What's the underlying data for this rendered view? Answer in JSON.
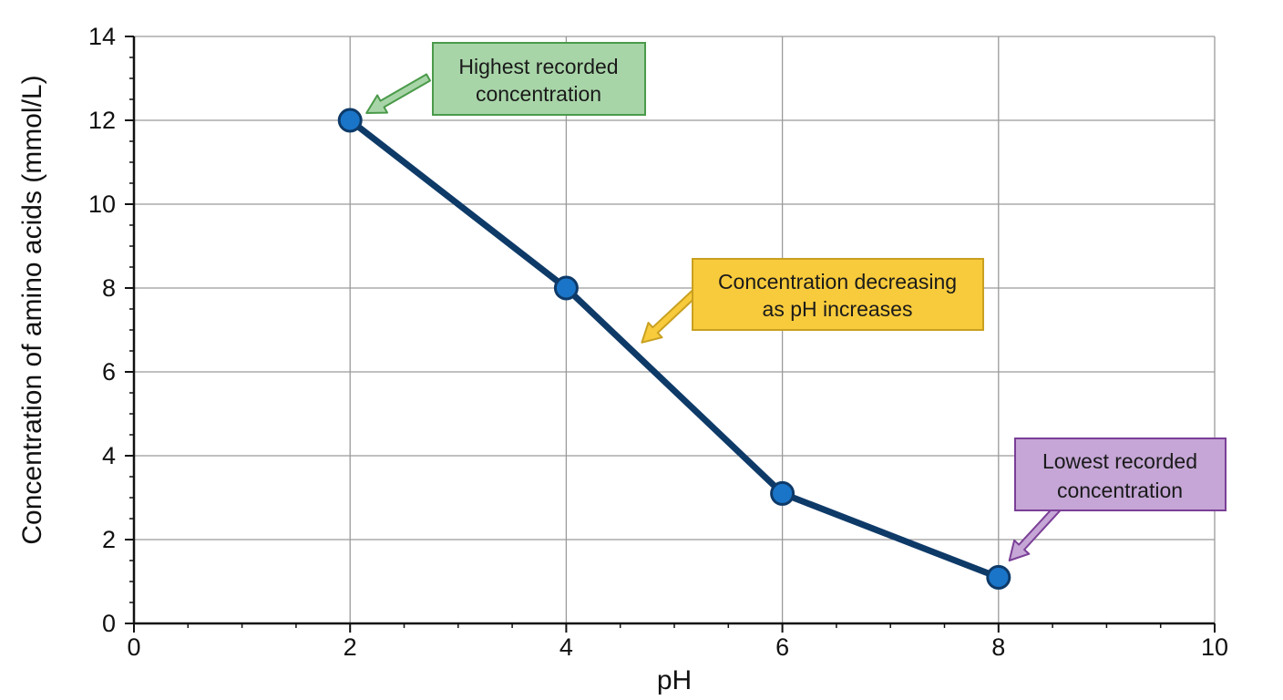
{
  "chart_data": {
    "type": "line",
    "title": "",
    "xlabel": "pH",
    "ylabel": "Concentration of amino acids (mmol/L)",
    "xlim": [
      0,
      10
    ],
    "ylim": [
      0,
      14
    ],
    "x_ticks": [
      0,
      2,
      4,
      6,
      8,
      10
    ],
    "y_ticks": [
      0,
      2,
      4,
      6,
      8,
      10,
      12,
      14
    ],
    "x_minor_step": 0.5,
    "y_minor_step": 0.5,
    "grid": true,
    "series": [
      {
        "x": [
          2,
          4,
          6,
          8
        ],
        "y": [
          12,
          8,
          3.1,
          1.1
        ]
      }
    ],
    "annotations": [
      {
        "lines": [
          "Highest recorded",
          "concentration"
        ],
        "target": [
          2,
          12
        ],
        "style": "green"
      },
      {
        "lines": [
          "Concentration decreasing",
          "as pH increases"
        ],
        "target": [
          4.7,
          6.7
        ],
        "style": "yellow"
      },
      {
        "lines": [
          "Lowest recorded",
          "concentration"
        ],
        "target": [
          8.1,
          1.5
        ],
        "style": "purple"
      }
    ]
  },
  "colors": {
    "line": "#0e3a68",
    "marker_fill": "#1a75c8",
    "marker_stroke": "#0e3a68",
    "grid": "#9a9a9a",
    "axis": "#111111",
    "green_fill": "#a8d5a8",
    "green_border": "#4a9a4a",
    "yellow_fill": "#f8cb3c",
    "yellow_border": "#c9a020",
    "purple_fill": "#c5a6d6",
    "purple_border": "#7a3f96"
  }
}
